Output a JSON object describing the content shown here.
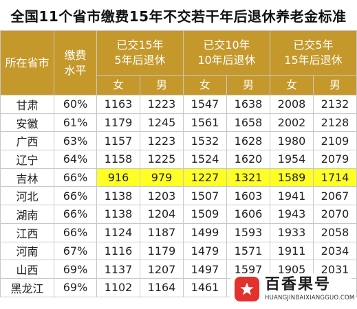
{
  "title": "全国11个省市缴费15年不交若干年后退休养老金标准",
  "header": {
    "province": "所在省市",
    "rate_line1": "缴费",
    "rate_line2": "水平",
    "groups": [
      {
        "line1": "已交15年",
        "line2": "5年后退休"
      },
      {
        "line1": "已交10年",
        "line2": "10年后退休"
      },
      {
        "line1": "已交5年",
        "line2": "15年后退休"
      }
    ],
    "female": "女",
    "male": "男"
  },
  "highlight_color": "#ffff26",
  "header_color": "#c5982c",
  "rows": [
    {
      "province": "甘肃",
      "rate": "60%",
      "values": [
        "1163",
        "1223",
        "1547",
        "1638",
        "2008",
        "2132"
      ],
      "highlight": false
    },
    {
      "province": "安徽",
      "rate": "61%",
      "values": [
        "1179",
        "1245",
        "1561",
        "1658",
        "2002",
        "2128"
      ],
      "highlight": false
    },
    {
      "province": "广西",
      "rate": "63%",
      "values": [
        "1157",
        "1223",
        "1532",
        "1628",
        "1980",
        "2109"
      ],
      "highlight": false
    },
    {
      "province": "辽宁",
      "rate": "64%",
      "values": [
        "1158",
        "1225",
        "1524",
        "1620",
        "1954",
        "2079"
      ],
      "highlight": false
    },
    {
      "province": "吉林",
      "rate": "66%",
      "values": [
        "916",
        "979",
        "1227",
        "1321",
        "1589",
        "1714"
      ],
      "highlight": true
    },
    {
      "province": "河北",
      "rate": "66%",
      "values": [
        "1138",
        "1203",
        "1507",
        "1603",
        "1941",
        "2067"
      ],
      "highlight": false
    },
    {
      "province": "湖南",
      "rate": "66%",
      "values": [
        "1138",
        "1204",
        "1509",
        "1606",
        "1943",
        "2070"
      ],
      "highlight": false
    },
    {
      "province": "江西",
      "rate": "66%",
      "values": [
        "1124",
        "1187",
        "1499",
        "1593",
        "1933",
        "2058"
      ],
      "highlight": false
    },
    {
      "province": "河南",
      "rate": "67%",
      "values": [
        "1116",
        "1179",
        "1479",
        "1571",
        "1911",
        "2034"
      ],
      "highlight": false
    },
    {
      "province": "山西",
      "rate": "69%",
      "values": [
        "1137",
        "1207",
        "1497",
        "1597",
        "1905",
        "2031"
      ],
      "highlight": false
    },
    {
      "province": "黑龙江",
      "rate": "69%",
      "values": [
        "1102",
        "1164",
        "1461",
        "",
        "",
        ""
      ],
      "highlight": false
    }
  ],
  "watermark": {
    "name": "百香果号",
    "url": "HUANGJINBAIXIANGGUO.COM",
    "badge_icon": "star-icon"
  }
}
